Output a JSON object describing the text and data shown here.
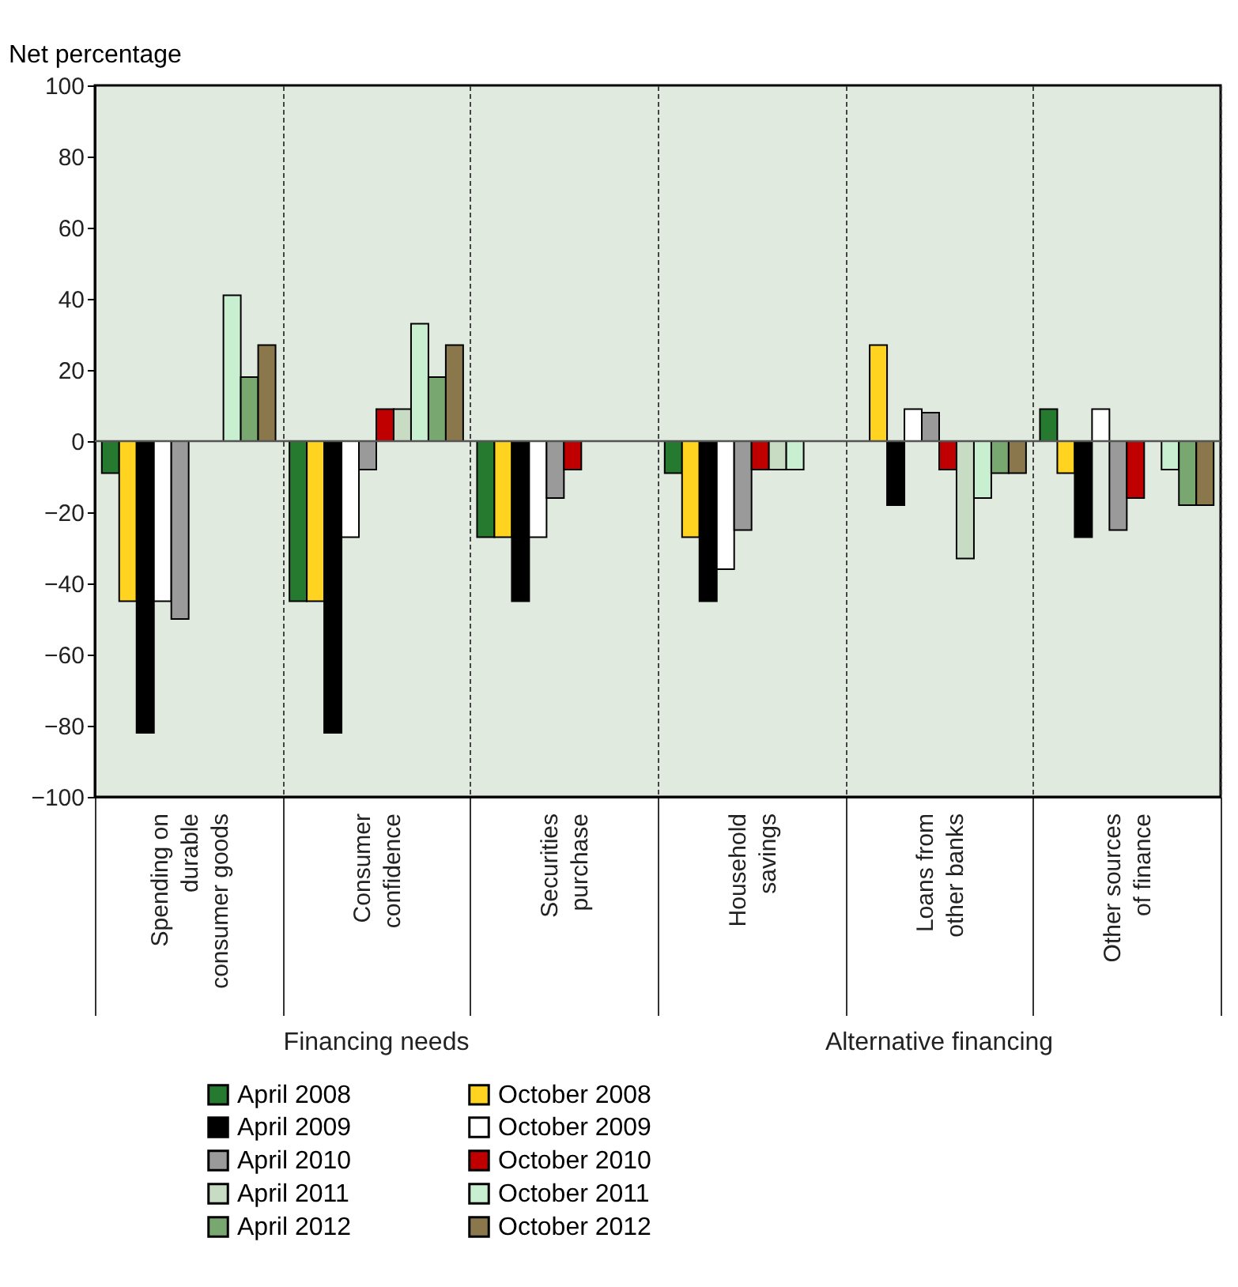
{
  "chart_data": {
    "type": "bar",
    "ylabel": "Net percentage",
    "categories": [
      "Spending on durable consumer goods",
      "Consumer confidence",
      "Securities purchase",
      "Household savings",
      "Loans from other banks",
      "Other sources of finance"
    ],
    "series": [
      {
        "name": "April 2008",
        "color": "#267a30",
        "values": [
          -9,
          -45,
          -27,
          -9,
          null,
          9
        ]
      },
      {
        "name": "October 2008",
        "color": "#ffd320",
        "values": [
          -45,
          -45,
          -27,
          -27,
          27,
          -9
        ]
      },
      {
        "name": "April 2009",
        "color": "#000000",
        "values": [
          -82,
          -82,
          -45,
          -45,
          -18,
          -27
        ]
      },
      {
        "name": "October 2009",
        "color": "#ffffff",
        "values": [
          -45,
          -27,
          -27,
          -36,
          9,
          9
        ]
      },
      {
        "name": "April 2010",
        "color": "#9a9a9a",
        "values": [
          -50,
          -8,
          -16,
          -25,
          8,
          -25
        ]
      },
      {
        "name": "October 2010",
        "color": "#c00000",
        "values": [
          null,
          9,
          -8,
          -8,
          -8,
          -16
        ]
      },
      {
        "name": "April 2011",
        "color": "#c8dcc4",
        "values": [
          null,
          9,
          null,
          -8,
          -33,
          null
        ]
      },
      {
        "name": "October 2011",
        "color": "#c8f0d0",
        "values": [
          41,
          33,
          null,
          -8,
          -16,
          -8
        ]
      },
      {
        "name": "April 2012",
        "color": "#78a870",
        "values": [
          18,
          18,
          null,
          null,
          -9,
          -18
        ]
      },
      {
        "name": "October 2012",
        "color": "#8a784c",
        "values": [
          27,
          27,
          null,
          null,
          -9,
          -18
        ]
      }
    ],
    "ylim": [
      -100,
      100
    ],
    "yticks": [
      -100,
      -80,
      -60,
      -40,
      -20,
      0,
      20,
      40,
      60,
      80,
      100
    ],
    "grid": "x",
    "legend": "bottom",
    "ref_lines": [
      {
        "axis": "y",
        "value": 0
      }
    ],
    "annotations": [
      "Financing needs",
      "Alternative financing"
    ]
  }
}
